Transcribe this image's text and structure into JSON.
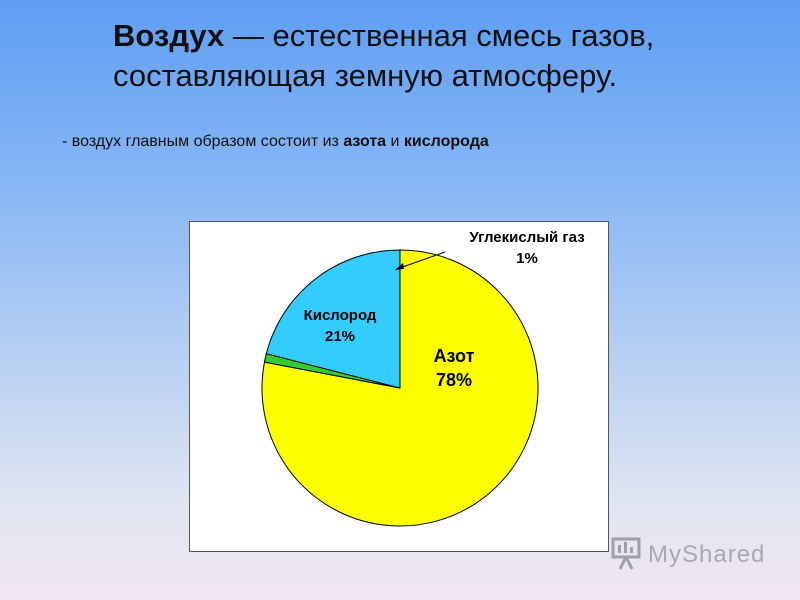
{
  "header": {
    "title_bold": "Воздух",
    "title_rest": " — естественная смесь газов, составляющая земную атмосферу."
  },
  "bullet": {
    "prefix": "- воздух главным образом состоит из ",
    "term1": "азота",
    "middle": " и ",
    "term2": "кислорода"
  },
  "chart_data": {
    "type": "pie",
    "slices": [
      {
        "name": "Азот",
        "value": 78,
        "label": "78%",
        "color": "#ffff00"
      },
      {
        "name": "Углекислый газ",
        "value": 1,
        "label": "1%",
        "color": "#33cc33"
      },
      {
        "name": "Кислород",
        "value": 21,
        "label": "21%",
        "color": "#33ccff"
      }
    ],
    "start_angle_deg": 0,
    "direction": "clockwise"
  },
  "watermark": {
    "text": "MyShared",
    "colors": {
      "icon": "#666666"
    }
  }
}
